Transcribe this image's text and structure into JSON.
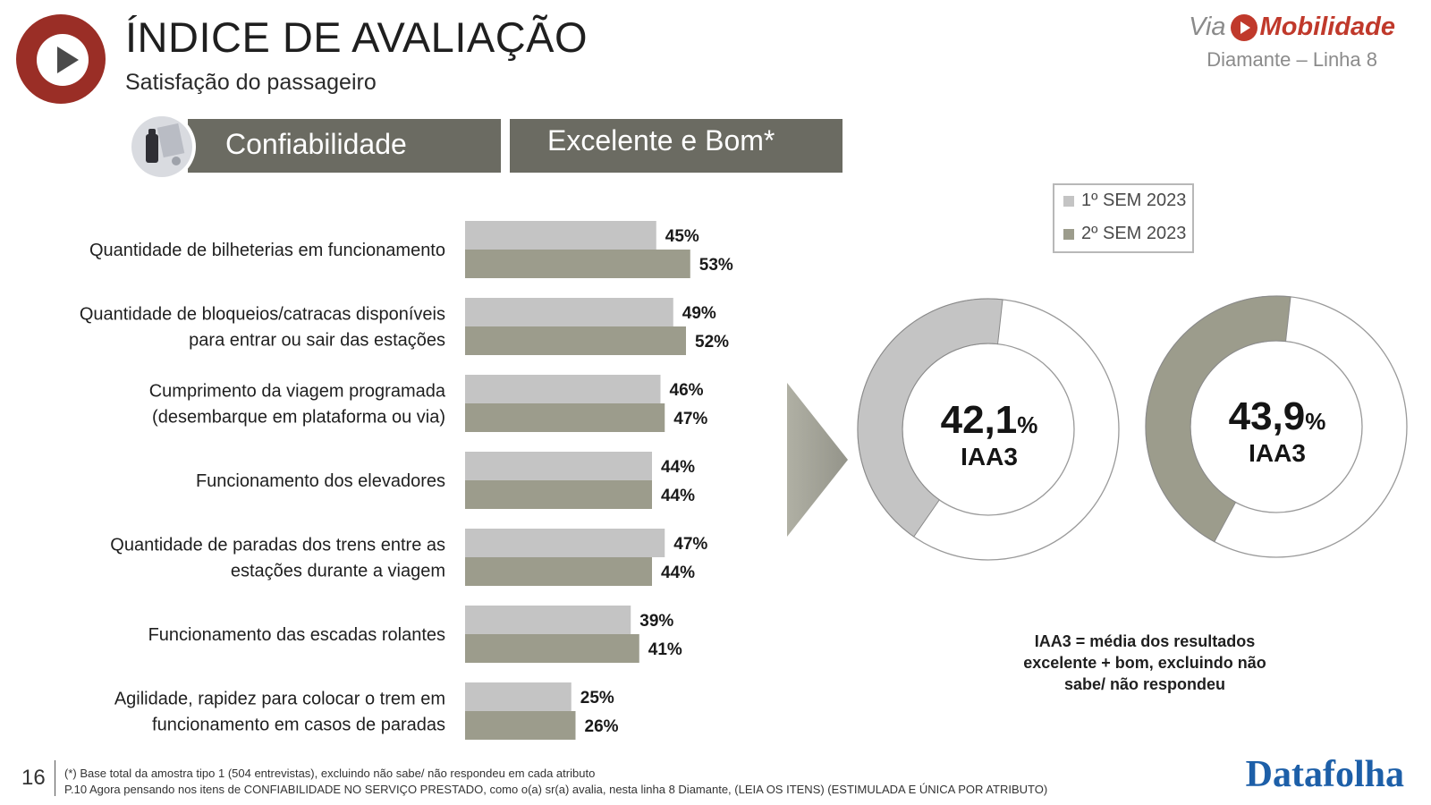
{
  "header": {
    "title": "ÍNDICE DE AVALIAÇÃO",
    "subtitle": "Satisfação do passageiro",
    "brand_via": "Via",
    "brand_mobilidade": "Mobilidade",
    "line_name": "Diamante – Linha 8"
  },
  "banners": {
    "section": "Confiabilidade",
    "metric": "Excelente e Bom*"
  },
  "legend": [
    {
      "label": "1º SEM 2023",
      "color": "#c4c4c4"
    },
    {
      "label": "2º SEM 2023",
      "color": "#9c9c8c"
    }
  ],
  "chart_data": [
    {
      "type": "bar",
      "orientation": "horizontal",
      "categories": [
        [
          "Quantidade de bilheterias em funcionamento"
        ],
        [
          "Quantidade de bloqueios/catracas disponíveis",
          "para entrar ou sair das estações"
        ],
        [
          "Cumprimento da viagem programada",
          "(desembarque em plataforma ou via)"
        ],
        [
          "Funcionamento dos elevadores"
        ],
        [
          "Quantidade de paradas dos trens entre as",
          "estações durante a viagem"
        ],
        [
          "Funcionamento das escadas rolantes"
        ],
        [
          "Agilidade, rapidez para colocar o trem em",
          "funcionamento em casos de paradas"
        ]
      ],
      "series": [
        {
          "name": "1º SEM 2023",
          "values": [
            45,
            49,
            46,
            44,
            47,
            39,
            25
          ],
          "labels": [
            "45%",
            "49%",
            "46%",
            "44%",
            "47%",
            "39%",
            "25%"
          ],
          "color": "#c4c4c4"
        },
        {
          "name": "2º SEM 2023",
          "values": [
            53,
            52,
            47,
            44,
            44,
            41,
            26
          ],
          "labels": [
            "53%",
            "52%",
            "47%",
            "44%",
            "44%",
            "41%",
            "26%"
          ],
          "color": "#9c9c8c"
        }
      ],
      "legend_position": "top-right",
      "grid": false
    },
    {
      "type": "pie",
      "style": "donut",
      "series_name": "1º SEM 2023",
      "value": 42.1,
      "value_text": "42,1",
      "unit": "%",
      "label": "IAA3",
      "color": "#c4c4c4"
    },
    {
      "type": "pie",
      "style": "donut",
      "series_name": "2º SEM 2023",
      "value": 43.9,
      "value_text": "43,9",
      "unit": "%",
      "label": "IAA3",
      "color": "#9c9c8c"
    }
  ],
  "note": "IAA3 = média dos resultados excelente + bom, excluindo não sabe/ não respondeu",
  "footer": {
    "page_number": "16",
    "footnote1": "(*) Base total da amostra tipo 1 (504 entrevistas), excluindo não sabe/ não respondeu em cada atributo",
    "footnote2": "P.10 Agora pensando nos itens de CONFIABILIDADE NO SERVIÇO PRESTADO, como o(a) sr(a) avalia, nesta linha 8 Diamante, (LEIA OS ITENS) (ESTIMULADA E ÚNICA POR ATRIBUTO)",
    "source_logo": "Datafolha"
  }
}
